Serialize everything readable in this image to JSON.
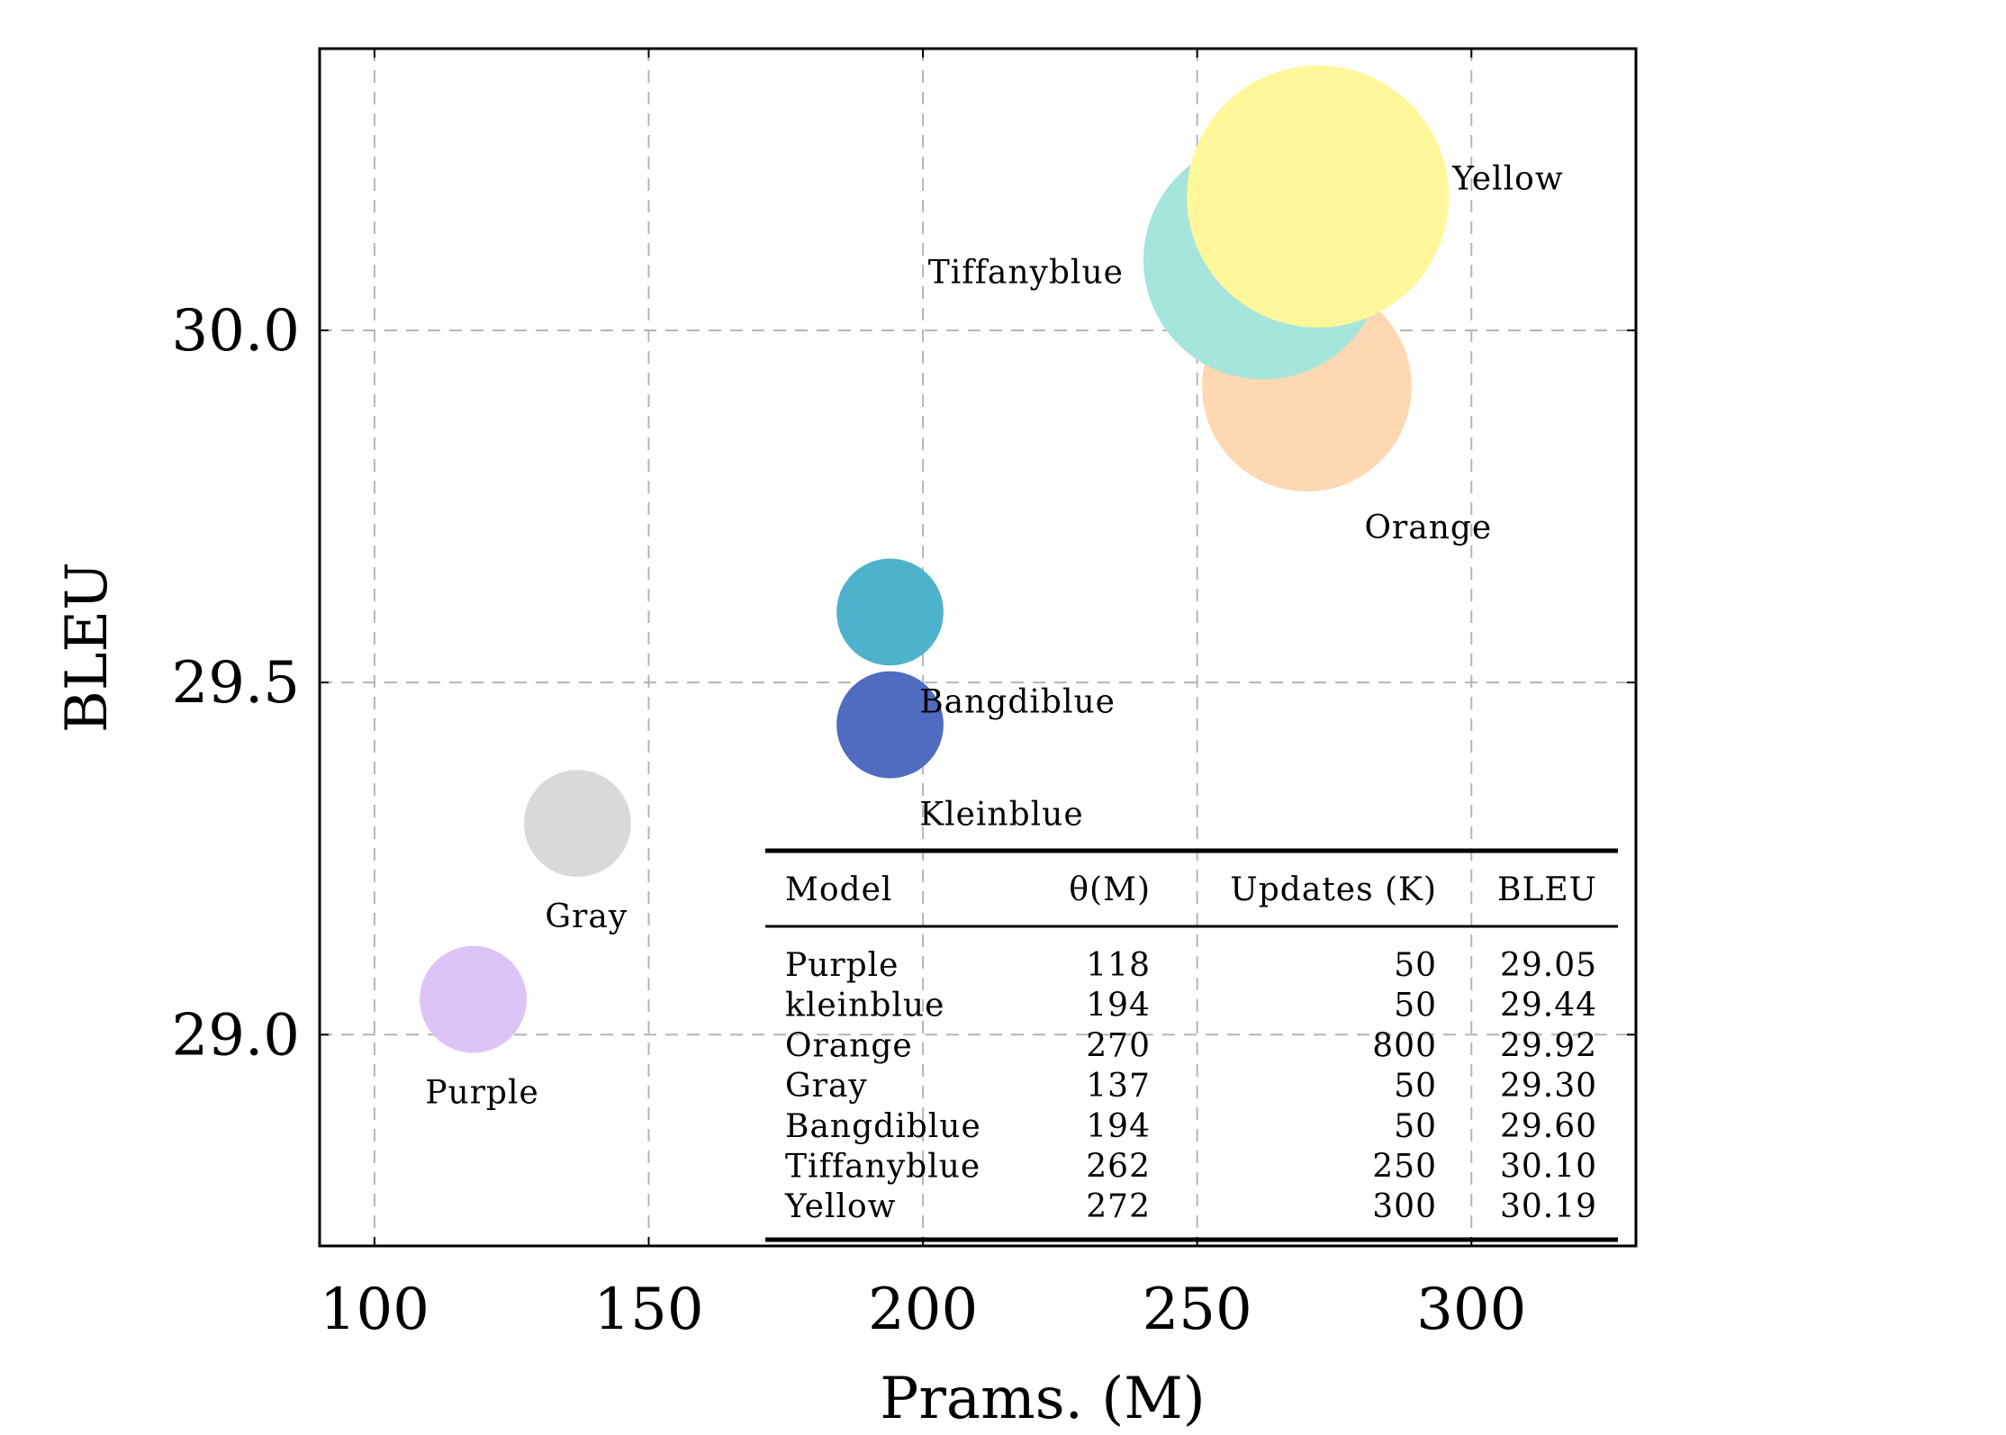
{
  "chart_data": {
    "type": "scatter",
    "xlabel": "Prams. (M)",
    "ylabel": "BLEU",
    "xlim": [
      90,
      330
    ],
    "ylim": [
      28.7,
      30.4
    ],
    "xticks": [
      100,
      150,
      200,
      250,
      300
    ],
    "yticks": [
      29.0,
      29.5,
      30.0
    ],
    "xtick_labels": [
      "100",
      "150",
      "200",
      "250",
      "300"
    ],
    "ytick_labels": [
      "29.0",
      "29.5",
      "30.0"
    ],
    "grid": true,
    "points": [
      {
        "name": "Purple",
        "x": 118,
        "y": 29.05,
        "updates": 50,
        "color": "#dcc4f7",
        "label_pos": "below"
      },
      {
        "name": "Kleinblue",
        "x": 194,
        "y": 29.44,
        "updates": 50,
        "color": "#4f6cc0",
        "label_pos": "below-right"
      },
      {
        "name": "Orange",
        "x": 270,
        "y": 29.92,
        "updates": 800,
        "color": "#fed8b2",
        "label_pos": "below-right"
      },
      {
        "name": "Gray",
        "x": 137,
        "y": 29.3,
        "updates": 50,
        "color": "#d9d9d9",
        "label_pos": "below"
      },
      {
        "name": "Bangdiblue",
        "x": 194,
        "y": 29.6,
        "updates": 50,
        "color": "#4db3cc",
        "label_pos": "below-right"
      },
      {
        "name": "Tiffanyblue",
        "x": 262,
        "y": 30.1,
        "updates": 250,
        "color": "#a6e5dc",
        "label_pos": "left"
      },
      {
        "name": "Yellow",
        "x": 272,
        "y": 30.19,
        "updates": 300,
        "color": "#fff799",
        "label_pos": "right"
      }
    ],
    "table": {
      "headers": [
        "Model",
        "θ(M)",
        "Updates (K)",
        "BLEU"
      ],
      "rows": [
        [
          "Purple",
          "118",
          "50",
          "29.05"
        ],
        [
          "kleinblue",
          "194",
          "50",
          "29.44"
        ],
        [
          "Orange",
          "270",
          "800",
          "29.92"
        ],
        [
          "Gray",
          "137",
          "50",
          "29.30"
        ],
        [
          "Bangdiblue",
          "194",
          "50",
          "29.60"
        ],
        [
          "Tiffanyblue",
          "262",
          "250",
          "30.10"
        ],
        [
          "Yellow",
          "272",
          "300",
          "30.19"
        ]
      ]
    }
  }
}
